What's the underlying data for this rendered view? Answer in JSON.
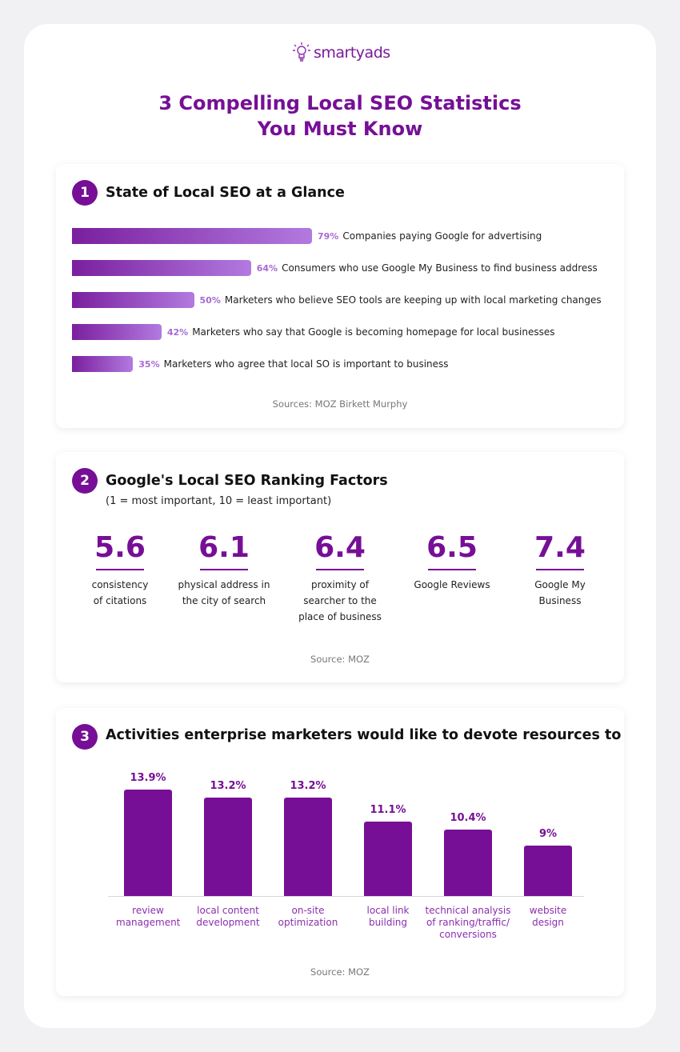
{
  "logo": {
    "text": "smartyads"
  },
  "title": {
    "line1": "3 Compelling Local SEO Statistics",
    "line2": "You Must Know"
  },
  "colors": {
    "accent": "#760f96",
    "bar_gradient_start": "#7a1f9e",
    "bar_gradient_end": "#b27ae0"
  },
  "section1": {
    "number": "1",
    "heading": "State of Local SEO at a Glance",
    "source": "Sources: MOZ Birkett Murphy"
  },
  "section2": {
    "number": "2",
    "heading": "Google's Local SEO Ranking Factors",
    "subheading": "(1 = most important, 10 = least important)",
    "source": "Source: MOZ",
    "factors": [
      {
        "value": "5.6",
        "label": "consistency of citations"
      },
      {
        "value": "6.1",
        "label": "physical address in the city of search"
      },
      {
        "value": "6.4",
        "label": "proximity of searcher to the place of business"
      },
      {
        "value": "6.5",
        "label": "Google Reviews"
      },
      {
        "value": "7.4",
        "label": "Google My Business"
      }
    ]
  },
  "section3": {
    "number": "3",
    "heading": "Activities enterprise marketers would like to devote resources to",
    "source": "Source: MOZ"
  },
  "chart_data": [
    {
      "type": "bar",
      "orientation": "horizontal",
      "categories": [
        "Companies paying Google for advertising",
        "Consumers who use Google My Business to find business address",
        "Marketers who believe SEO tools are keeping up with local marketing changes",
        "Marketers who say that Google is becoming homepage for local businesses",
        "Marketers who agree that local SO is important to business"
      ],
      "values": [
        79,
        64,
        50,
        42,
        35
      ],
      "labels": [
        "79%",
        "64%",
        "50%",
        "42%",
        "35%"
      ]
    },
    {
      "type": "bar",
      "orientation": "vertical",
      "categories": [
        "review management",
        "local content development",
        "on-site optimization",
        "local link building",
        "technical analysis of ranking/traffic/ conversions",
        "website design"
      ],
      "values": [
        13.9,
        13.2,
        13.2,
        11.1,
        10.4,
        9
      ],
      "labels": [
        "13.9%",
        "13.2%",
        "13.2%",
        "11.1%",
        "10.4%",
        "9%"
      ]
    }
  ]
}
